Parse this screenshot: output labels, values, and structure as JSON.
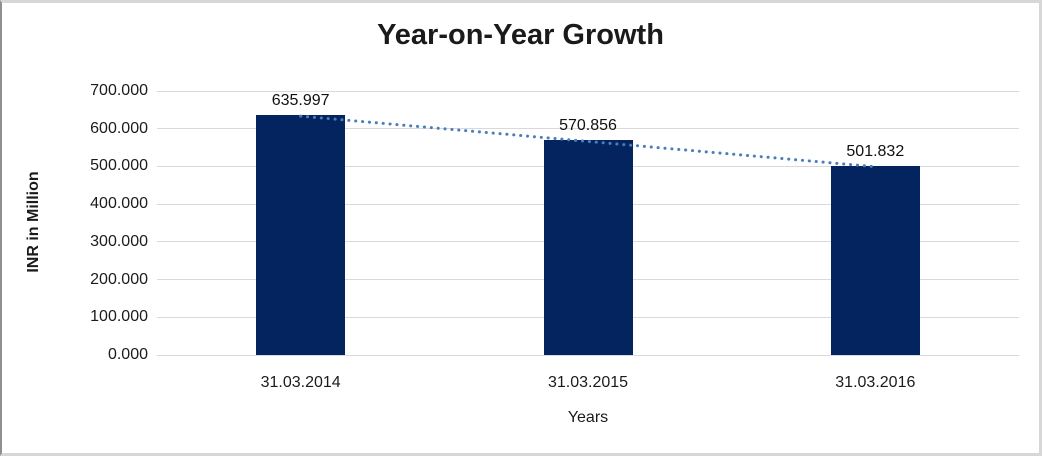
{
  "chart_data": {
    "type": "bar",
    "title": "Year-on-Year Growth",
    "xlabel": "Years",
    "ylabel": "INR in Million",
    "categories": [
      "31.03.2014",
      "31.03.2015",
      "31.03.2016"
    ],
    "values": [
      635.997,
      570.856,
      501.832
    ],
    "data_labels": [
      "635.997",
      "570.856",
      "501.832"
    ],
    "ylim": [
      0,
      700
    ],
    "ytick_step": 100,
    "ytick_labels": [
      "0.000",
      "100.000",
      "200.000",
      "300.000",
      "400.000",
      "500.000",
      "600.000",
      "700.000"
    ],
    "grid": true,
    "legend": false,
    "trendline": {
      "type": "linear",
      "style": "dotted"
    }
  },
  "colors": {
    "bar": "#03245e",
    "gridline": "#d9d9d9",
    "trendline": "#4a7ebb",
    "text": "#1b1b1b",
    "title_text": "#1a1a1a",
    "background": "#ffffff"
  }
}
